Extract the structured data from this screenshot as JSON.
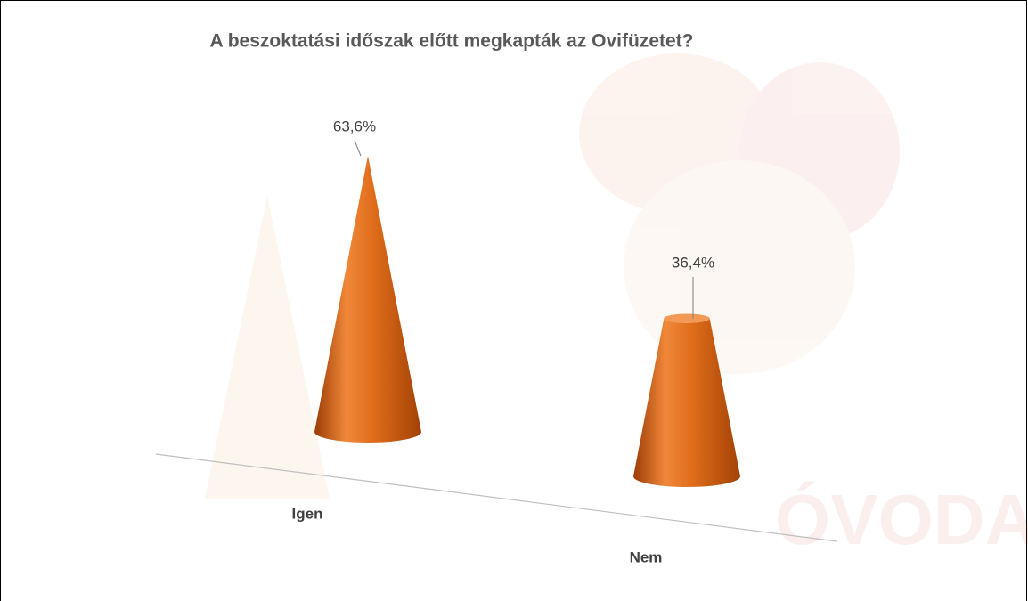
{
  "chart_data": {
    "type": "cone",
    "title": "A beszoktatási időszak előtt megkapták az Ovifüzetet?",
    "categories": [
      "Igen",
      "Nem"
    ],
    "values": [
      63.6,
      36.4
    ],
    "value_labels": [
      "63,6%",
      "36,4%"
    ],
    "color": "#e0701e"
  }
}
